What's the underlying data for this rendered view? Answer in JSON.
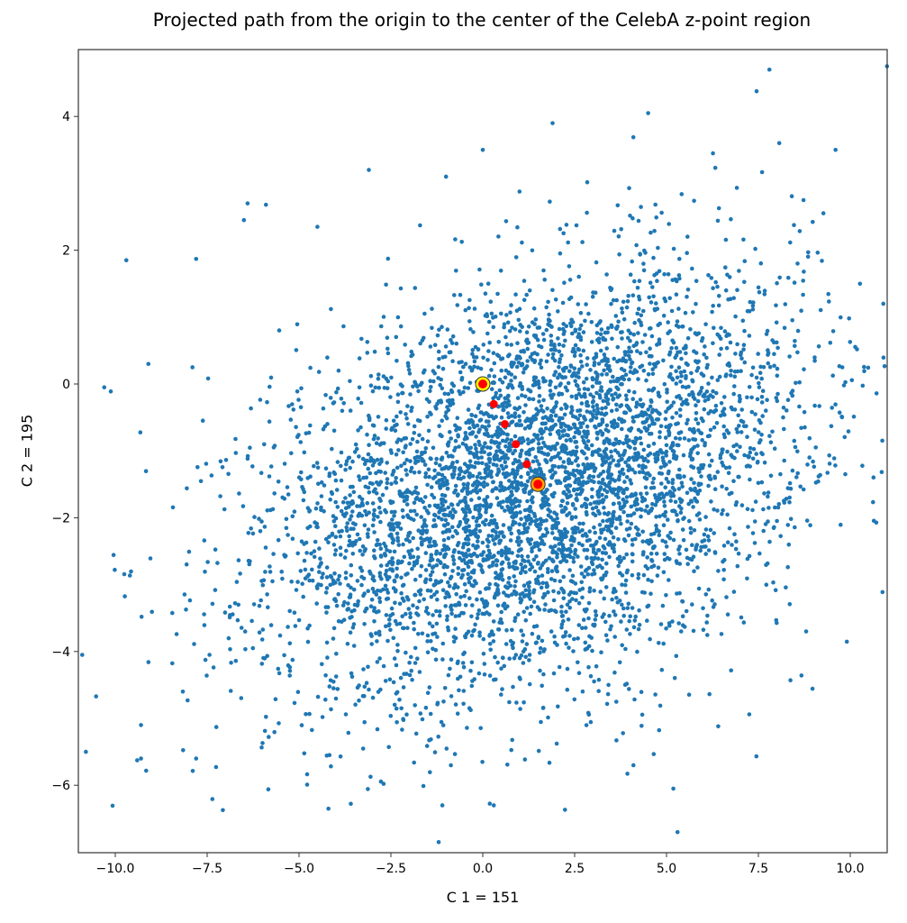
{
  "chart_data": {
    "type": "scatter",
    "title": "Projected path from the origin to the center of the CelebA z-point region",
    "xlabel": "C 1 = 151",
    "ylabel": "C 2 = 195",
    "xlim": [
      -11.0,
      11.0
    ],
    "ylim": [
      -7.0,
      4.9
    ],
    "grid": false,
    "legend": null,
    "x_ticks": [
      -10.0,
      -7.5,
      -5.0,
      -2.5,
      0.0,
      2.5,
      5.0,
      7.5,
      10.0
    ],
    "x_tick_labels": [
      "−10.0",
      "−7.5",
      "−5.0",
      "−2.5",
      "0.0",
      "2.5",
      "5.0",
      "7.5",
      "10.0"
    ],
    "y_ticks": [
      4,
      2,
      0,
      -2,
      -4,
      -6
    ],
    "y_tick_labels": [
      "4",
      "2",
      "0",
      "−2",
      "−4",
      "−6"
    ],
    "series": [
      {
        "name": "CelebA z-points",
        "color": "#1f77b4",
        "marker_size": 3,
        "distribution": {
          "kind": "correlated_gaussian_cloud",
          "count": 5000,
          "mean": [
            1.5,
            -1.5
          ],
          "std": [
            3.6,
            1.55
          ],
          "correlation": 0.35
        },
        "notable_points": [
          [
            -10.9,
            -4.05
          ],
          [
            -10.8,
            -5.5
          ],
          [
            -10.3,
            -0.05
          ],
          [
            -9.7,
            1.85
          ],
          [
            -9.1,
            0.3
          ],
          [
            -7.8,
            1.87
          ],
          [
            -7.9,
            0.25
          ],
          [
            -6.4,
            2.7
          ],
          [
            -6.5,
            2.45
          ],
          [
            -5.9,
            2.68
          ],
          [
            -4.5,
            2.35
          ],
          [
            -3.1,
            3.2
          ],
          [
            -1.0,
            3.1
          ],
          [
            0.0,
            3.5
          ],
          [
            1.9,
            3.9
          ],
          [
            4.5,
            4.05
          ],
          [
            7.8,
            4.7
          ],
          [
            11.0,
            4.75
          ],
          [
            9.6,
            3.5
          ],
          [
            10.9,
            1.2
          ],
          [
            -9.3,
            -5.1
          ],
          [
            -9.3,
            -5.6
          ],
          [
            -7.8,
            -5.6
          ],
          [
            -4.2,
            -6.35
          ],
          [
            -1.2,
            -6.85
          ],
          [
            0.3,
            -6.3
          ],
          [
            5.3,
            -6.7
          ],
          [
            4.1,
            -5.7
          ],
          [
            -1.1,
            -6.3
          ],
          [
            8.8,
            -3.7
          ]
        ]
      },
      {
        "name": "projected path",
        "color": "#ff0000",
        "marker_size": 5,
        "points": [
          [
            0.0,
            0.0
          ],
          [
            0.3,
            -0.3
          ],
          [
            0.6,
            -0.6
          ],
          [
            0.9,
            -0.9
          ],
          [
            1.2,
            -1.2
          ],
          [
            1.5,
            -1.5
          ]
        ]
      },
      {
        "name": "origin",
        "face_color": "#ff0000",
        "ring_color": "#ffff00",
        "edge_color": "#333333",
        "points": [
          [
            0.0,
            0.0
          ]
        ]
      },
      {
        "name": "region center",
        "face_color": "#ff0000",
        "ring_color": "#ffa500",
        "edge_color": "#333333",
        "points": [
          [
            1.5,
            -1.5
          ]
        ]
      }
    ]
  }
}
